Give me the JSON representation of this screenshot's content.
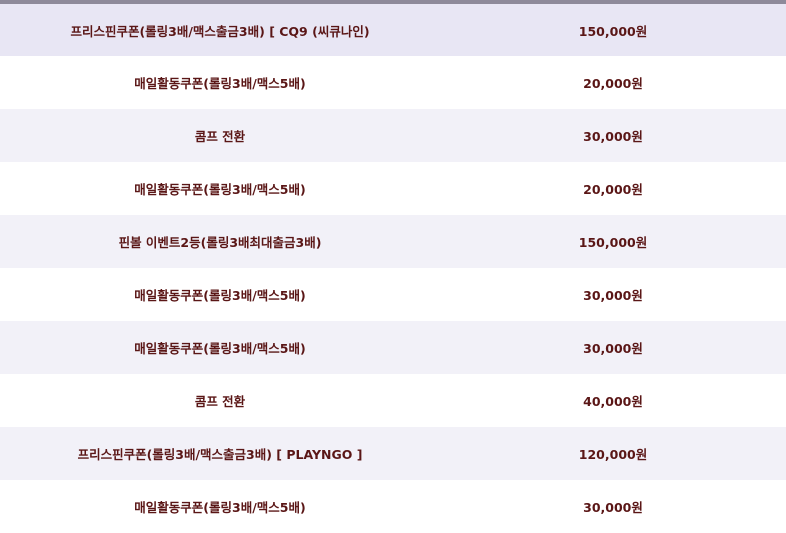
{
  "rows": [
    {
      "name": "프리스핀쿠폰(롤링3배/맥스출금3배) [ CQ9 (씨큐나인)",
      "amount": "150,000원"
    },
    {
      "name": "매일활동쿠폰(롤링3배/맥스5배)",
      "amount": "20,000원"
    },
    {
      "name": "콤프 전환",
      "amount": "30,000원"
    },
    {
      "name": "매일활동쿠폰(롤링3배/맥스5배)",
      "amount": "20,000원"
    },
    {
      "name": "핀볼 이벤트2등(롤링3배최대출금3배)",
      "amount": "150,000원"
    },
    {
      "name": "매일활동쿠폰(롤링3배/맥스5배)",
      "amount": "30,000원"
    },
    {
      "name": "매일활동쿠폰(롤링3배/맥스5배)",
      "amount": "30,000원"
    },
    {
      "name": "콤프 전환",
      "amount": "40,000원"
    },
    {
      "name": "프리스핀쿠폰(롤링3배/맥스출금3배) [ PLAYNGO ]",
      "amount": "120,000원"
    },
    {
      "name": "매일활동쿠폰(롤링3배/맥스5배)",
      "amount": "30,000원"
    }
  ]
}
